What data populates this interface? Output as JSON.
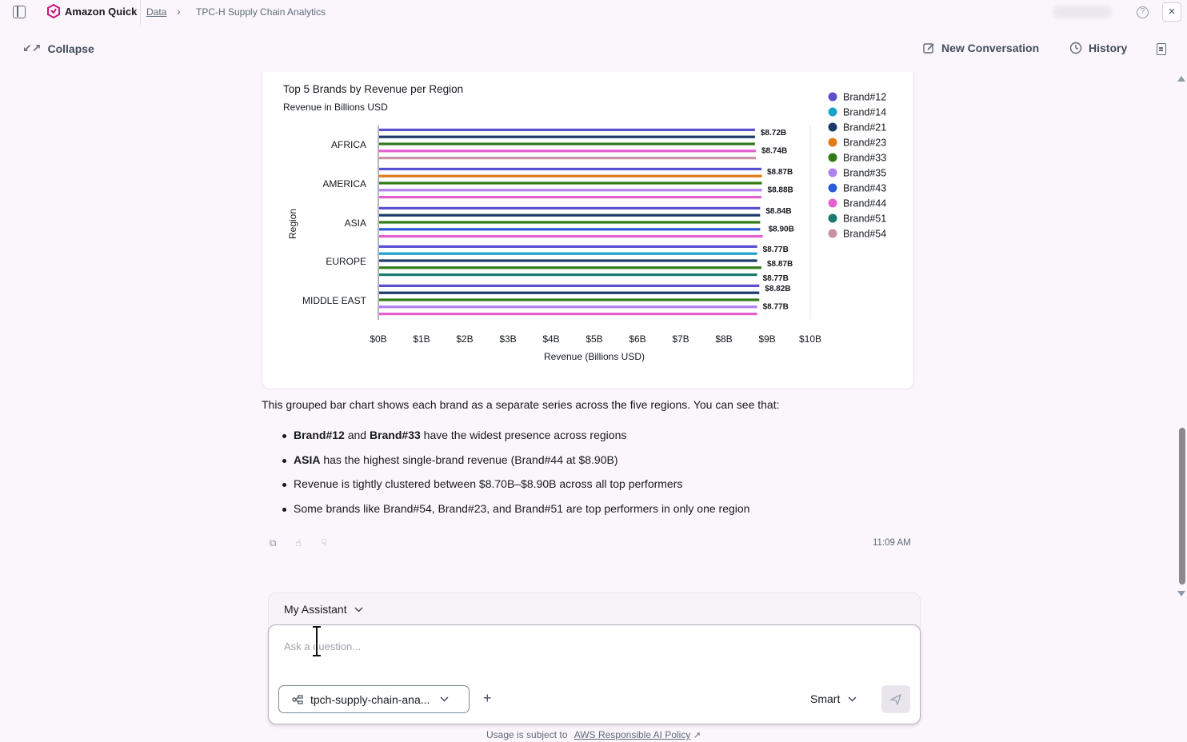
{
  "app": {
    "name": "Amazon Quick",
    "breadcrumb": {
      "data": "Data",
      "title": "TPC-H Supply Chain Analytics"
    }
  },
  "toolbar": {
    "collapse_label": "Collapse",
    "new_conversation_label": "New Conversation",
    "history_label": "History"
  },
  "chart_data": {
    "type": "bar",
    "orientation": "horizontal",
    "title": "Top 5 Brands by Revenue per Region",
    "subtitle": "Revenue in Billions USD",
    "xlabel": "Revenue (Billions USD)",
    "ylabel": "Region",
    "xlim": [
      0,
      10
    ],
    "x_ticks": [
      "$0B",
      "$1B",
      "$2B",
      "$3B",
      "$4B",
      "$5B",
      "$6B",
      "$7B",
      "$8B",
      "$9B",
      "$10B"
    ],
    "categories": [
      "AFRICA",
      "AMERICA",
      "ASIA",
      "EUROPE",
      "MIDDLE EAST"
    ],
    "legend": {
      "position": "right",
      "colors": [
        "#5a4fcf",
        "#1aa3c9",
        "#1b3a6b",
        "#e07b17",
        "#2f7a17",
        "#b07ff0",
        "#2a5bd7",
        "#e55fd1",
        "#197a6e",
        "#c890a3"
      ]
    },
    "grid": false,
    "series": [
      {
        "name": "Brand#12",
        "color": "#5a4fcf",
        "values": [
          8.72,
          8.87,
          8.84,
          8.77,
          8.82
        ]
      },
      {
        "name": "Brand#14",
        "color": "#1aa3c9",
        "values": [
          null,
          null,
          null,
          8.77,
          null
        ]
      },
      {
        "name": "Brand#21",
        "color": "#1b3a6b",
        "values": [
          8.72,
          null,
          8.84,
          8.77,
          8.82
        ]
      },
      {
        "name": "Brand#23",
        "color": "#e07b17",
        "values": [
          null,
          8.88,
          null,
          null,
          null
        ]
      },
      {
        "name": "Brand#33",
        "color": "#2f7a17",
        "values": [
          8.72,
          8.88,
          8.84,
          8.87,
          8.82
        ]
      },
      {
        "name": "Brand#35",
        "color": "#b07ff0",
        "values": [
          null,
          8.88,
          null,
          null,
          8.77
        ]
      },
      {
        "name": "Brand#43",
        "color": "#2a5bd7",
        "values": [
          null,
          null,
          8.84,
          null,
          null
        ]
      },
      {
        "name": "Brand#44",
        "color": "#e55fd1",
        "values": [
          8.74,
          8.87,
          8.9,
          null,
          8.77
        ]
      },
      {
        "name": "Brand#51",
        "color": "#197a6e",
        "values": [
          null,
          null,
          null,
          8.77,
          null
        ]
      },
      {
        "name": "Brand#54",
        "color": "#c890a3",
        "values": [
          8.74,
          null,
          null,
          null,
          null
        ]
      }
    ],
    "data_labels": [
      {
        "category": "AFRICA",
        "labels": [
          "$8.72B",
          "$8.74B"
        ]
      },
      {
        "category": "AMERICA",
        "labels": [
          "$8.87B",
          "$8.88B"
        ]
      },
      {
        "category": "ASIA",
        "labels": [
          "$8.84B",
          "$8.90B"
        ]
      },
      {
        "category": "EUROPE",
        "labels": [
          "$8.77B",
          "$8.87B",
          "$8.77B"
        ]
      },
      {
        "category": "MIDDLE EAST",
        "labels": [
          "$8.82B",
          "$8.77B"
        ]
      }
    ]
  },
  "message": {
    "intro": "This grouped bar chart shows each brand as a separate series across the five regions. You can see that:",
    "bullets": [
      {
        "bold1": "Brand#12",
        "mid": " and ",
        "bold2": "Brand#33",
        "rest": " have the widest presence across regions"
      },
      {
        "bold1": "ASIA",
        "rest": " has the highest single-brand revenue (Brand#44 at $8.90B)"
      },
      {
        "text": "Revenue is tightly clustered between $8.70B–$8.90B across all top performers"
      },
      {
        "text": "Some brands like Brand#54, Brand#23, and Brand#51 are top performers in only one region"
      }
    ],
    "timestamp": "11:09 AM"
  },
  "composer": {
    "assistant_label": "My Assistant",
    "placeholder": "Ask a question...",
    "dataset_label": "tpch-supply-chain-ana...",
    "mode_label": "Smart"
  },
  "footer": {
    "usage_text": "Usage is subject to",
    "policy_link": "AWS Responsible AI Policy"
  }
}
